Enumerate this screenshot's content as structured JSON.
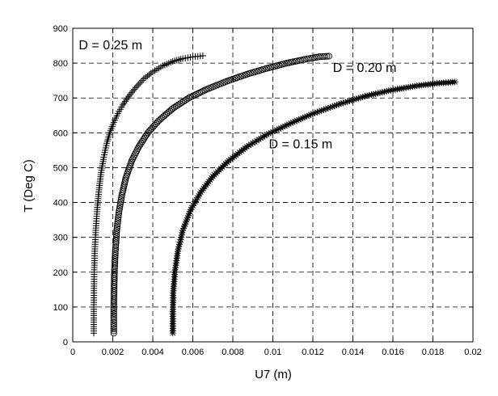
{
  "chart_data": {
    "type": "scatter",
    "xlabel": "U7 (m)",
    "ylabel": "T (Deg C)",
    "xlim": [
      0,
      0.02
    ],
    "ylim": [
      0,
      900
    ],
    "xticks": [
      0,
      0.002,
      0.004,
      0.006,
      0.008,
      0.01,
      0.012,
      0.014,
      0.016,
      0.018,
      0.02
    ],
    "xtick_labels": [
      "0",
      "0.002",
      "0.004",
      "0.006",
      "0.008",
      "0.01",
      "0.012",
      "0.014",
      "0.016",
      "0.018",
      "0.02"
    ],
    "yticks": [
      0,
      100,
      200,
      300,
      400,
      500,
      600,
      700,
      800,
      900
    ],
    "ytick_labels": [
      "0",
      "100",
      "200",
      "300",
      "400",
      "500",
      "600",
      "700",
      "800",
      "900"
    ],
    "grid": true,
    "grid_style": "dashed",
    "colors": {
      "marks": "#000000",
      "grid": "#000000",
      "background": "#ffffff"
    },
    "series": [
      {
        "marker": "plus",
        "points": [
          [
            0.00105,
            25
          ],
          [
            0.00105,
            100
          ],
          [
            0.00107,
            200
          ],
          [
            0.0011,
            260
          ],
          [
            0.00115,
            320
          ],
          [
            0.00122,
            380
          ],
          [
            0.0013,
            430
          ],
          [
            0.0014,
            480
          ],
          [
            0.00155,
            530
          ],
          [
            0.0017,
            570
          ],
          [
            0.00185,
            600
          ],
          [
            0.00205,
            630
          ],
          [
            0.00225,
            655
          ],
          [
            0.0025,
            680
          ],
          [
            0.0028,
            705
          ],
          [
            0.00315,
            730
          ],
          [
            0.00355,
            755
          ],
          [
            0.004,
            775
          ],
          [
            0.0045,
            792
          ],
          [
            0.005,
            805
          ],
          [
            0.0055,
            813
          ],
          [
            0.006,
            818
          ],
          [
            0.0065,
            821
          ]
        ]
      },
      {
        "marker": "circle",
        "points": [
          [
            0.00205,
            25
          ],
          [
            0.00205,
            100
          ],
          [
            0.00208,
            200
          ],
          [
            0.00213,
            260
          ],
          [
            0.0022,
            320
          ],
          [
            0.0023,
            370
          ],
          [
            0.00245,
            420
          ],
          [
            0.00265,
            470
          ],
          [
            0.00295,
            520
          ],
          [
            0.0033,
            560
          ],
          [
            0.00375,
            600
          ],
          [
            0.0043,
            635
          ],
          [
            0.005,
            670
          ],
          [
            0.0058,
            700
          ],
          [
            0.0067,
            725
          ],
          [
            0.0077,
            748
          ],
          [
            0.0087,
            768
          ],
          [
            0.0097,
            785
          ],
          [
            0.0107,
            800
          ],
          [
            0.0117,
            812
          ],
          [
            0.0123,
            818
          ],
          [
            0.0128,
            820
          ]
        ]
      },
      {
        "marker": "star",
        "points": [
          [
            0.005,
            25
          ],
          [
            0.005,
            80
          ],
          [
            0.00502,
            140
          ],
          [
            0.0051,
            200
          ],
          [
            0.00525,
            260
          ],
          [
            0.0055,
            320
          ],
          [
            0.0059,
            380
          ],
          [
            0.0064,
            430
          ],
          [
            0.007,
            475
          ],
          [
            0.0078,
            520
          ],
          [
            0.0087,
            560
          ],
          [
            0.0097,
            595
          ],
          [
            0.0108,
            625
          ],
          [
            0.012,
            655
          ],
          [
            0.0133,
            682
          ],
          [
            0.0146,
            705
          ],
          [
            0.0159,
            722
          ],
          [
            0.0172,
            735
          ],
          [
            0.0182,
            742
          ],
          [
            0.0191,
            746
          ]
        ]
      }
    ],
    "annotations": [
      {
        "text": "D = 0.25 m",
        "x": 0.0003,
        "y": 840
      },
      {
        "text": "D = 0.20 m",
        "x": 0.013,
        "y": 775
      },
      {
        "text": "D = 0.15 m",
        "x": 0.0098,
        "y": 555
      }
    ]
  }
}
